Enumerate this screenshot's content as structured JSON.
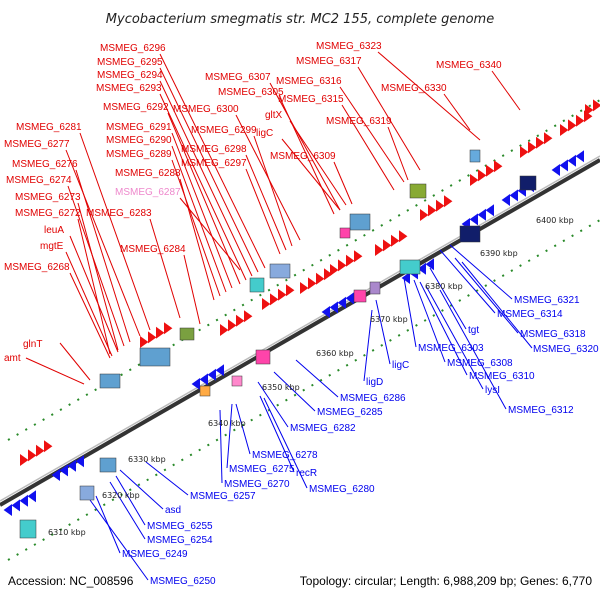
{
  "title": "Mycobacterium smegmatis str. MC2 155, complete genome",
  "footer": {
    "accession": "Accession: NC_008596",
    "summary": "Topology: circular; Length: 6,988,209 bp; Genes: 6,770"
  },
  "scale": [
    "6310 kbp",
    "6320 kbp",
    "6330 kbp",
    "6340 kbp",
    "6350 kbp",
    "6360 kbp",
    "6370 kbp",
    "6380 kbp",
    "6390 kbp",
    "6400 kbp"
  ],
  "top_labels": [
    "MSMEG_6296",
    "MSMEG_6295",
    "MSMEG_6294",
    "MSMEG_6293",
    "MSMEG_6292",
    "MSMEG_6291",
    "MSMEG_6290",
    "MSMEG_6289",
    "MSMEG_6288",
    "MSMEG_6287",
    "MSMEG_6281",
    "MSMEG_6277",
    "MSMEG_6276",
    "MSMEG_6274",
    "MSMEG_6273",
    "MSMEG_6272",
    "MSMEG_6283",
    "leuA",
    "mgtE",
    "MSMEG_6284",
    "MSMEG_6268",
    "glnT",
    "amt",
    "MSMEG_6307",
    "MSMEG_6305",
    "MSMEG_6300",
    "MSMEG_6299",
    "MSMEG_6298",
    "MSMEG_6297",
    "gltX",
    "ligC",
    "MSMEG_6309",
    "MSMEG_6323",
    "MSMEG_6317",
    "MSMEG_6316",
    "MSMEG_6315",
    "MSMEG_6319",
    "MSMEG_6330",
    "MSMEG_6340"
  ],
  "bottom_labels": [
    "MSMEG_6321",
    "MSMEG_6314",
    "MSMEG_6318",
    "MSMEG_6320",
    "tgt",
    "MSMEG_6303",
    "MSMEG_6308",
    "MSMEG_6310",
    "lysI",
    "MSMEG_6312",
    "ligC",
    "ligD",
    "MSMEG_6286",
    "MSMEG_6285",
    "MSMEG_6282",
    "MSMEG_6278",
    "recR",
    "MSMEG_6280",
    "MSMEG_6275",
    "MSMEG_6270",
    "MSMEG_6257",
    "asd",
    "MSMEG_6255",
    "MSMEG_6254",
    "MSMEG_6249",
    "MSMEG_6250"
  ]
}
